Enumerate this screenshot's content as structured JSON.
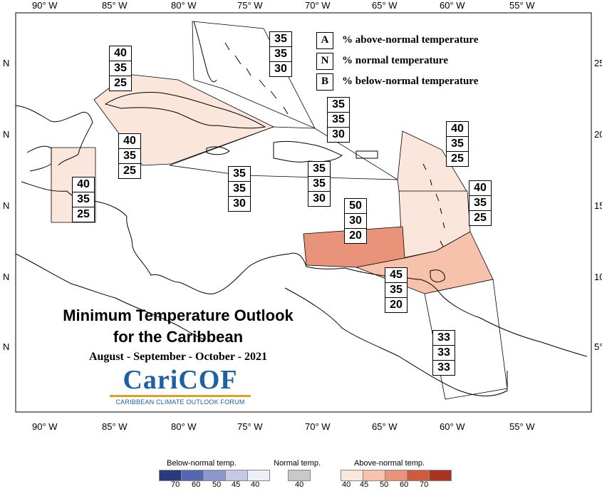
{
  "map": {
    "title_line1": "Minimum Temperature Outlook",
    "title_line2": "for the Caribbean",
    "period": "August - September - October - 2021",
    "logo": {
      "name": "CariCOF",
      "subtitle": "CARIBBEAN CLIMATE OUTLOOK FORUM"
    },
    "lon_labels": [
      "90° W",
      "85° W",
      "80° W",
      "75° W",
      "70° W",
      "65° W",
      "60° W",
      "55° W"
    ],
    "lat_labels_left": [
      "N",
      "N",
      "N",
      "N",
      "N"
    ],
    "lat_labels_right": [
      "25°",
      "20°",
      "15°",
      "10°",
      "5°"
    ]
  },
  "legend": {
    "items": [
      {
        "key": "A",
        "text": "% above-normal temperature"
      },
      {
        "key": "N",
        "text": "% normal temperature"
      },
      {
        "key": "B",
        "text": "% below-normal temperature"
      }
    ]
  },
  "regions": [
    {
      "name": "bahamas",
      "probs": [
        "35",
        "35",
        "30"
      ],
      "color": "#ffffff"
    },
    {
      "name": "cuba",
      "probs": [
        "40",
        "35",
        "25"
      ],
      "color": "#fbe6dc"
    },
    {
      "name": "western-caribbean",
      "probs": [
        "40",
        "35",
        "25"
      ],
      "color": "#ffffff"
    },
    {
      "name": "belize",
      "probs": [
        "40",
        "35",
        "25"
      ],
      "color": "#fbe6dc"
    },
    {
      "name": "jamaica",
      "probs": [
        "35",
        "35",
        "30"
      ],
      "color": "#ffffff"
    },
    {
      "name": "hispaniola-north",
      "probs": [
        "35",
        "35",
        "30"
      ],
      "color": "#ffffff"
    },
    {
      "name": "hispaniola-puerto-rico",
      "probs": [
        "35",
        "35",
        "30"
      ],
      "color": "#ffffff"
    },
    {
      "name": "leeward-islands",
      "probs": [
        "40",
        "35",
        "25"
      ],
      "color": "#fbe6dc"
    },
    {
      "name": "windward-islands",
      "probs": [
        "40",
        "35",
        "25"
      ],
      "color": "#fbe6dc"
    },
    {
      "name": "abc-islands",
      "probs": [
        "50",
        "30",
        "20"
      ],
      "color": "#e8937a"
    },
    {
      "name": "trinidad-tobago",
      "probs": [
        "45",
        "35",
        "20"
      ],
      "color": "#f6c2ab"
    },
    {
      "name": "guianas",
      "probs": [
        "33",
        "33",
        "33"
      ],
      "color": "#ffffff"
    }
  ],
  "color_scale": {
    "below": {
      "title": "Below-normal temp.",
      "numbers": [
        "70",
        "60",
        "50",
        "45",
        "40"
      ],
      "colors": [
        "#2b3a7a",
        "#5566b0",
        "#8c97cc",
        "#c3c9e6",
        "#eceef8"
      ]
    },
    "normal": {
      "title": "Normal temp.",
      "numbers": [
        "40"
      ],
      "colors": [
        "#c8c8c8"
      ]
    },
    "above": {
      "title": "Above-normal temp.",
      "numbers": [
        "40",
        "45",
        "50",
        "60",
        "70"
      ],
      "colors": [
        "#fbe6dc",
        "#f6c2ab",
        "#e8937a",
        "#cf5b3f",
        "#a9341f"
      ]
    }
  }
}
